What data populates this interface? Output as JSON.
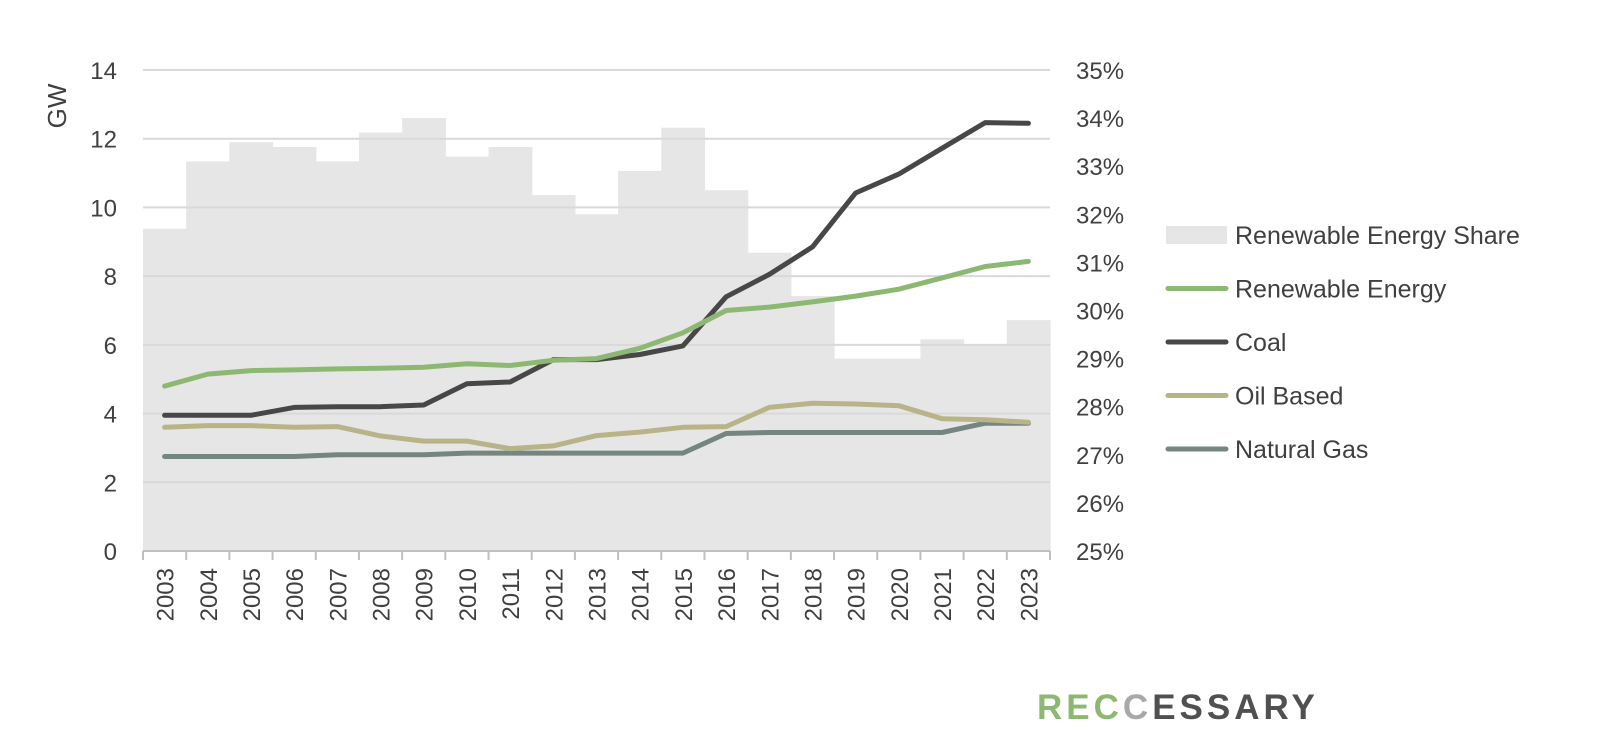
{
  "chart_data": {
    "type": "line",
    "categories": [
      "2003",
      "2004",
      "2005",
      "2006",
      "2007",
      "2008",
      "2009",
      "2010",
      "2011",
      "2012",
      "2013",
      "2014",
      "2015",
      "2016",
      "2017",
      "2018",
      "2019",
      "2020",
      "2021",
      "2022",
      "2023"
    ],
    "ylabel": "GW",
    "ylim": [
      0,
      14
    ],
    "y_ticks": [
      0,
      2,
      4,
      6,
      8,
      10,
      12,
      14
    ],
    "y2lim": [
      25,
      35
    ],
    "y2_ticks": [
      "25%",
      "26%",
      "27%",
      "28%",
      "29%",
      "30%",
      "31%",
      "32%",
      "33%",
      "34%",
      "35%"
    ],
    "grid": true,
    "legend_position": "right",
    "bar_series": {
      "name": "Renewable Energy Share",
      "axis": "right",
      "unit": "%",
      "color": "#e6e6e6",
      "values": [
        31.7,
        33.1,
        33.5,
        33.4,
        33.1,
        33.7,
        34.0,
        33.2,
        33.4,
        32.4,
        32.0,
        32.9,
        33.8,
        32.5,
        31.2,
        30.3,
        29.0,
        29.0,
        29.4,
        29.3,
        29.8
      ]
    },
    "series": [
      {
        "name": "Renewable Energy",
        "color": "#8db871",
        "values": [
          4.8,
          5.15,
          5.25,
          5.27,
          5.3,
          5.32,
          5.35,
          5.45,
          5.4,
          5.55,
          5.6,
          5.9,
          6.35,
          7.0,
          7.1,
          7.25,
          7.42,
          7.62,
          7.95,
          8.28,
          8.43
        ]
      },
      {
        "name": "Coal",
        "color": "#474747",
        "values": [
          3.95,
          3.95,
          3.95,
          4.18,
          4.2,
          4.2,
          4.25,
          4.87,
          4.92,
          5.57,
          5.57,
          5.72,
          5.97,
          7.4,
          8.05,
          8.85,
          10.42,
          10.97,
          11.72,
          12.47,
          12.45
        ]
      },
      {
        "name": "Oil Based",
        "color": "#b8b487",
        "values": [
          3.6,
          3.65,
          3.65,
          3.6,
          3.62,
          3.35,
          3.2,
          3.2,
          2.98,
          3.06,
          3.36,
          3.46,
          3.6,
          3.62,
          4.18,
          4.3,
          4.28,
          4.23,
          3.85,
          3.82,
          3.75
        ]
      },
      {
        "name": "Natural Gas",
        "color": "#758580",
        "values": [
          2.75,
          2.75,
          2.75,
          2.75,
          2.8,
          2.8,
          2.8,
          2.85,
          2.85,
          2.85,
          2.85,
          2.85,
          2.85,
          3.42,
          3.45,
          3.45,
          3.45,
          3.45,
          3.45,
          3.72,
          3.72
        ]
      }
    ]
  },
  "logo": {
    "part1": "REC",
    "part2": "C",
    "part3": "ESSARY",
    "colors": {
      "part1": "#8db871",
      "part2": "#a8a8a8",
      "part3": "#505050"
    }
  }
}
